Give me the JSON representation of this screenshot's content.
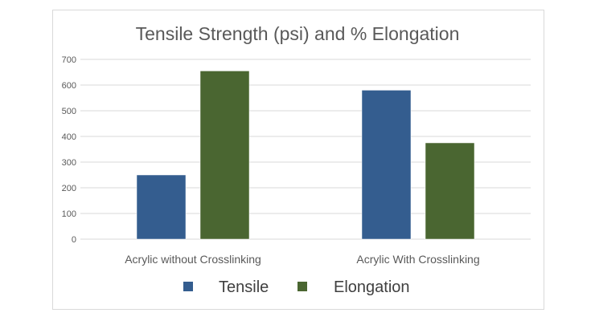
{
  "chart_data": {
    "type": "bar",
    "title": "Tensile Strength (psi) and % Elongation",
    "categories": [
      "Acrylic without Crosslinking",
      "Acrylic With Crosslinking"
    ],
    "series": [
      {
        "name": "Tensile",
        "values": [
          250,
          580
        ],
        "color": "#345d8f"
      },
      {
        "name": "Elongation",
        "values": [
          655,
          375
        ],
        "color": "#4a6631"
      }
    ],
    "ylim": [
      0,
      700
    ],
    "yticks": [
      0,
      100,
      200,
      300,
      400,
      500,
      600,
      700
    ],
    "grid": true,
    "legend": "bottom",
    "xlabel": "",
    "ylabel": ""
  }
}
